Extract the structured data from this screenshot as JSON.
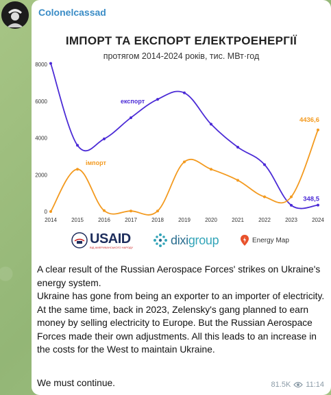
{
  "channel": {
    "name": "Colonelcassad"
  },
  "chart": {
    "title": "ІМПОРТ ТА ЕКСПОРТ ЕЛЕКТРОЕНЕРГІЇ",
    "subtitle": "протягом 2014-2024 років, тис. МВт·год"
  },
  "chart_data": {
    "type": "line",
    "title": "ІМПОРТ ТА ЕКСПОРТ ЕЛЕКТРОЕНЕРГІЇ",
    "subtitle": "протягом 2014-2024 років, тис. МВт·год",
    "x": [
      "2014",
      "2015",
      "2016",
      "2017",
      "2018",
      "2019",
      "2020",
      "2021",
      "2022",
      "2023",
      "2024"
    ],
    "y_ticks": [
      "0",
      "2000",
      "4000",
      "6000",
      "8000"
    ],
    "ylim": [
      0,
      8000
    ],
    "grid": false,
    "series": [
      {
        "name": "експорт",
        "color": "#4b2bd6",
        "values": [
          8050,
          3600,
          3950,
          5100,
          6100,
          6450,
          4750,
          3500,
          2550,
          340,
          348.5
        ],
        "end_label": "348,5"
      },
      {
        "name": "імпорт",
        "color": "#f39a1f",
        "values": [
          0,
          2300,
          50,
          30,
          30,
          2700,
          2300,
          1700,
          800,
          800,
          4436.6
        ],
        "end_label": "4436,6"
      }
    ]
  },
  "logos": {
    "usaid": "USAID",
    "usaid_sub": "ВІД АМЕРИКАНСЬКОГО НАРОДУ",
    "dixi_a": "dixi",
    "dixi_b": "group",
    "energymap": "Energy Map"
  },
  "post": {
    "paragraph1": "A clear result of the Russian Aerospace Forces' strikes on Ukraine's energy system.",
    "paragraph2": "Ukraine has gone from being an exporter to an importer of electricity. At the same time, back in 2023, Zelensky's gang planned to earn money by selling electricity to Europe. But the Russian Aerospace Forces made their own adjustments. All this leads to an increase in the costs for the West to maintain Ukraine.",
    "closing": "We must continue.",
    "views": "81.5K",
    "time": "11:14"
  },
  "colors": {
    "accent": "#3a8cc6",
    "export": "#4b2bd6",
    "import": "#f39a1f"
  }
}
